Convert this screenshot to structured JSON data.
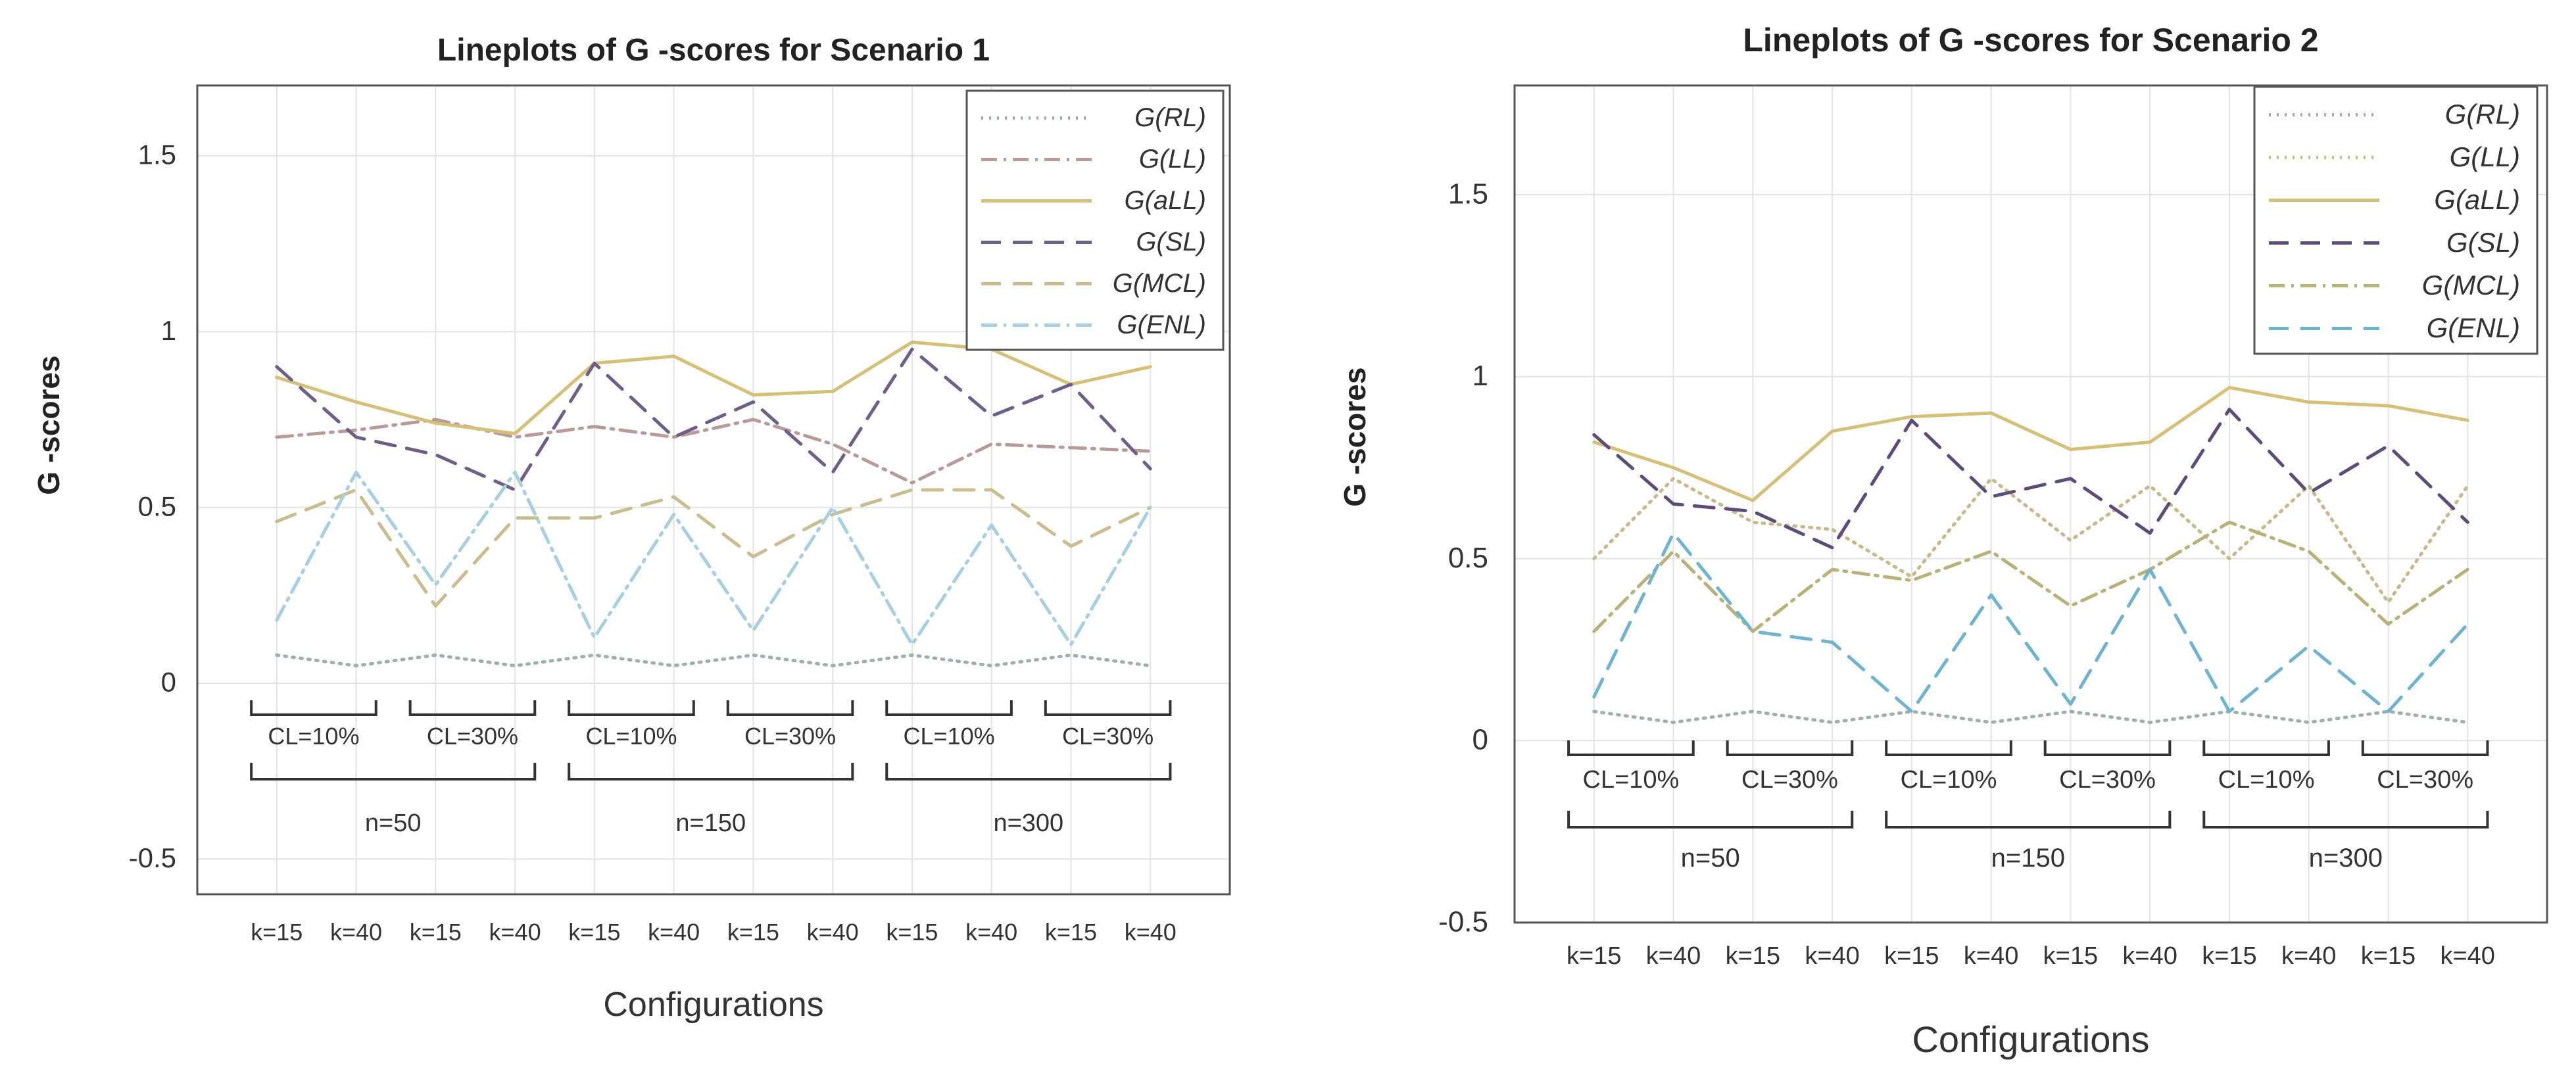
{
  "chart_data": [
    {
      "type": "line",
      "title": "Lineplots of G -scores for Scenario 1",
      "xlabel": "Configurations",
      "ylabel": "G -scores",
      "ylim": [
        -0.6,
        1.7
      ],
      "yticks": [
        "-0.5",
        "0",
        "0.5",
        "1",
        "1.5"
      ],
      "ytick_values": [
        -0.5,
        0,
        0.5,
        1,
        1.5
      ],
      "grid": true,
      "legend_position": "top-right",
      "categories": [
        "k=15",
        "k=40",
        "k=15",
        "k=40",
        "k=15",
        "k=40",
        "k=15",
        "k=40",
        "k=15",
        "k=40",
        "k=15",
        "k=40"
      ],
      "cl_groups": [
        "CL=10%",
        "CL=30%",
        "CL=10%",
        "CL=30%",
        "CL=10%",
        "CL=30%"
      ],
      "n_groups": [
        "n=50",
        "n=150",
        "n=300"
      ],
      "series": [
        {
          "name": "G(RL)",
          "color": "#9fb0a8",
          "dash": "dotted",
          "values": [
            0.08,
            0.05,
            0.08,
            0.05,
            0.08,
            0.05,
            0.08,
            0.05,
            0.08,
            0.05,
            0.08,
            0.05
          ]
        },
        {
          "name": "G(LL)",
          "color": "#b79b9b",
          "dash": "dashdot",
          "values": [
            0.7,
            0.72,
            0.75,
            0.7,
            0.73,
            0.7,
            0.75,
            0.68,
            0.57,
            0.68,
            0.67,
            0.66
          ]
        },
        {
          "name": "G(aLL)",
          "color": "#d4c078",
          "dash": "solid",
          "values": [
            0.87,
            0.8,
            0.74,
            0.71,
            0.91,
            0.93,
            0.82,
            0.83,
            0.97,
            0.95,
            0.85,
            0.9
          ]
        },
        {
          "name": "G(SL)",
          "color": "#6e5f86",
          "dash": "dashed",
          "values": [
            0.9,
            0.7,
            0.65,
            0.55,
            0.91,
            0.7,
            0.8,
            0.6,
            0.95,
            0.76,
            0.85,
            0.61
          ]
        },
        {
          "name": "G(MCL)",
          "color": "#c9bc8e",
          "dash": "dashed",
          "values": [
            0.46,
            0.55,
            0.22,
            0.47,
            0.47,
            0.53,
            0.36,
            0.48,
            0.55,
            0.55,
            0.39,
            0.5
          ]
        },
        {
          "name": "G(ENL)",
          "color": "#a7cfe0",
          "dash": "dashdot",
          "values": [
            0.18,
            0.6,
            0.28,
            0.6,
            0.13,
            0.48,
            0.15,
            0.5,
            0.11,
            0.45,
            0.11,
            0.5
          ]
        }
      ]
    },
    {
      "type": "line",
      "title": "Lineplots of G -scores for Scenario 2",
      "xlabel": "Configurations",
      "ylabel": "G -scores",
      "ylim": [
        -0.5,
        1.8
      ],
      "yticks": [
        "-0.5",
        "0",
        "0.5",
        "1",
        "1.5"
      ],
      "ytick_values": [
        -0.5,
        0,
        0.5,
        1,
        1.5
      ],
      "grid": true,
      "legend_position": "top-right",
      "categories": [
        "k=15",
        "k=40",
        "k=15",
        "k=40",
        "k=15",
        "k=40",
        "k=15",
        "k=40",
        "k=15",
        "k=40",
        "k=15",
        "k=40"
      ],
      "cl_groups": [
        "CL=10%",
        "CL=30%",
        "CL=10%",
        "CL=30%",
        "CL=10%",
        "CL=30%"
      ],
      "n_groups": [
        "n=50",
        "n=150",
        "n=300"
      ],
      "series": [
        {
          "name": "G(RL)",
          "color": "#9fb0a8",
          "dash": "dotted",
          "values": [
            0.08,
            0.05,
            0.08,
            0.05,
            0.08,
            0.05,
            0.08,
            0.05,
            0.08,
            0.05,
            0.08,
            0.05
          ]
        },
        {
          "name": "G(LL)",
          "color": "#c8b98c",
          "dash": "dotted",
          "values": [
            0.5,
            0.72,
            0.6,
            0.58,
            0.45,
            0.72,
            0.55,
            0.7,
            0.5,
            0.7,
            0.38,
            0.7
          ]
        },
        {
          "name": "G(aLL)",
          "color": "#d4c078",
          "dash": "solid",
          "values": [
            0.82,
            0.75,
            0.66,
            0.85,
            0.89,
            0.9,
            0.8,
            0.82,
            0.97,
            0.93,
            0.92,
            0.88
          ]
        },
        {
          "name": "G(SL)",
          "color": "#5c4c78",
          "dash": "dashed",
          "values": [
            0.84,
            0.65,
            0.63,
            0.53,
            0.88,
            0.67,
            0.72,
            0.57,
            0.91,
            0.68,
            0.81,
            0.6
          ]
        },
        {
          "name": "G(MCL)",
          "color": "#b7b27a",
          "dash": "dashdot",
          "values": [
            0.3,
            0.52,
            0.3,
            0.47,
            0.44,
            0.52,
            0.37,
            0.47,
            0.6,
            0.52,
            0.32,
            0.47
          ]
        },
        {
          "name": "G(ENL)",
          "color": "#6fb3cf",
          "dash": "dashed",
          "values": [
            0.12,
            0.57,
            0.3,
            0.27,
            0.08,
            0.4,
            0.1,
            0.47,
            0.08,
            0.26,
            0.08,
            0.32
          ]
        }
      ]
    }
  ]
}
